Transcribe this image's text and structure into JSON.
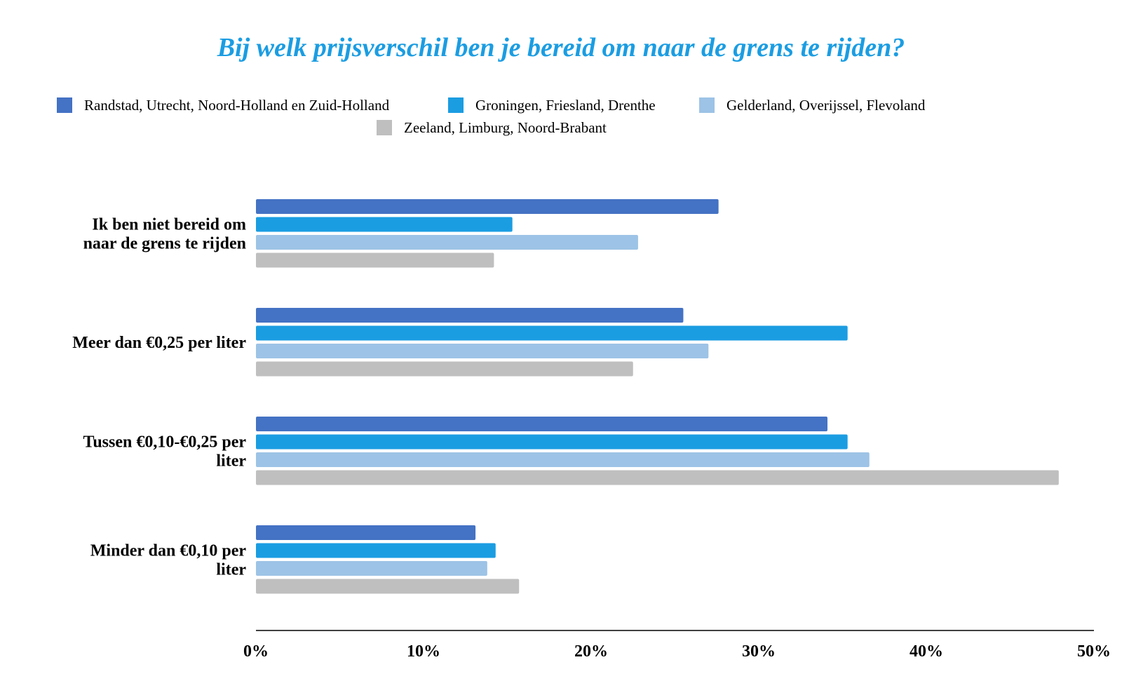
{
  "chart_data": {
    "type": "bar",
    "orientation": "horizontal",
    "title": "Bij welk prijsverschil ben je bereid om naar de grens te rijden?",
    "xlim": [
      0,
      50
    ],
    "x_ticks": [
      "0%",
      "10%",
      "20%",
      "30%",
      "40%",
      "50%"
    ],
    "grid": false,
    "legend_position": "top",
    "categories": [
      [
        "Ik ben niet bereid om",
        "naar de grens te rijden"
      ],
      [
        "Meer dan €0,25 per liter"
      ],
      [
        "Tussen €0,10-€0,25 per",
        "liter"
      ],
      [
        "Minder dan €0,10 per",
        "liter"
      ]
    ],
    "series": [
      {
        "name": "Randstad, Utrecht, Noord-Holland en Zuid-Holland",
        "color": "#4472C4",
        "values": [
          27.6,
          25.5,
          34.1,
          13.1
        ]
      },
      {
        "name": "Groningen, Friesland, Drenthe",
        "color": "#1B9DE2",
        "values": [
          15.3,
          35.3,
          35.3,
          14.3
        ]
      },
      {
        "name": "Gelderland, Overijssel, Flevoland",
        "color": "#9DC3E6",
        "values": [
          22.8,
          27.0,
          36.6,
          13.8
        ]
      },
      {
        "name": "Zeeland, Limburg, Noord-Brabant",
        "color": "#BFBFBF",
        "values": [
          14.2,
          22.5,
          47.9,
          15.7
        ]
      }
    ],
    "colors": {
      "title": "#1B9DE2",
      "axis": "#000000"
    }
  }
}
